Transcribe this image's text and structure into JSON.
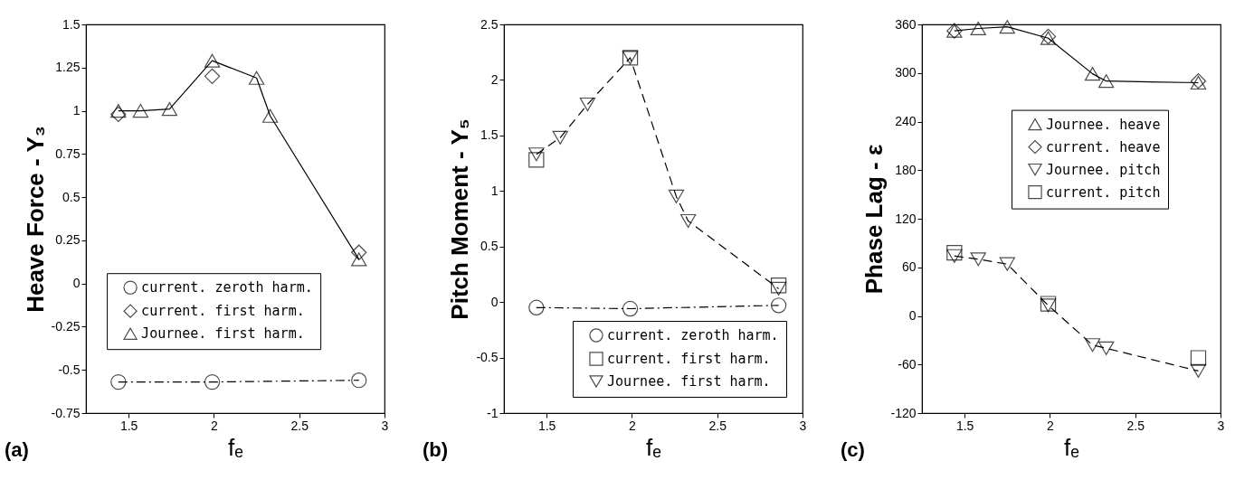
{
  "chart_data": [
    {
      "type": "line",
      "title": "(a)",
      "xlabel": "fₑ",
      "ylabel": "Heave Force - Y₃",
      "xlim": [
        1.25,
        3
      ],
      "xticks": [
        1.5,
        2,
        2.5,
        3
      ],
      "ylim": [
        -0.75,
        1.5
      ],
      "yticks": [
        -0.75,
        -0.5,
        -0.25,
        0,
        0.25,
        0.5,
        0.75,
        1,
        1.25,
        1.5
      ],
      "grid": false,
      "legend": "bottom",
      "series": [
        {
          "name": "current. zeroth harm.",
          "type": "line",
          "color": "#000000",
          "marker": "circle",
          "line_style": "dashdot",
          "x": [
            1.44,
            1.99,
            2.85
          ],
          "values": [
            -0.57,
            -0.57,
            -0.56
          ]
        },
        {
          "name": "current. first harm.",
          "type": "scatter",
          "color": "#000000",
          "marker": "diamond",
          "x": [
            1.44,
            1.99,
            2.85
          ],
          "values": [
            0.98,
            1.2,
            0.18
          ]
        },
        {
          "name": "Journee. first harm.",
          "type": "line",
          "color": "#000000",
          "marker": "triangle",
          "line_style": "solid",
          "x": [
            1.44,
            1.57,
            1.74,
            1.99,
            2.25,
            2.33,
            2.85
          ],
          "values": [
            1.0,
            1.0,
            1.01,
            1.29,
            1.19,
            0.97,
            0.14
          ]
        }
      ]
    },
    {
      "type": "line",
      "title": "(b)",
      "xlabel": "fₑ",
      "ylabel": "Pitch Moment - Y₅",
      "xlim": [
        1.25,
        3
      ],
      "xticks": [
        1.5,
        2,
        2.5,
        3
      ],
      "ylim": [
        -1,
        2.5
      ],
      "yticks": [
        -1,
        -0.5,
        0,
        0.5,
        1,
        1.5,
        2,
        2.5
      ],
      "grid": false,
      "legend": "bottom right",
      "series": [
        {
          "name": "current. zeroth harm.",
          "type": "line",
          "color": "#000000",
          "marker": "circle",
          "line_style": "dashdot",
          "x": [
            1.44,
            1.99,
            2.86
          ],
          "values": [
            -0.05,
            -0.06,
            -0.03
          ]
        },
        {
          "name": "current. first harm.",
          "type": "scatter",
          "color": "#000000",
          "marker": "square",
          "x": [
            1.44,
            1.99,
            2.86
          ],
          "values": [
            1.28,
            2.2,
            0.15
          ]
        },
        {
          "name": "Journee. first harm.",
          "type": "line",
          "color": "#000000",
          "marker": "triangle-down",
          "line_style": "dashed",
          "x": [
            1.44,
            1.58,
            1.74,
            1.99,
            2.26,
            2.33,
            2.86
          ],
          "values": [
            1.33,
            1.48,
            1.78,
            2.2,
            0.95,
            0.73,
            0.12
          ]
        }
      ]
    },
    {
      "type": "line",
      "title": "(c)",
      "xlabel": "fₑ",
      "ylabel": "Phase Lag - ε",
      "xlim": [
        1.25,
        3
      ],
      "xticks": [
        1.5,
        2,
        2.5,
        3
      ],
      "ylim": [
        -120,
        360
      ],
      "yticks": [
        -120,
        -60,
        0,
        60,
        120,
        180,
        240,
        300,
        360
      ],
      "grid": false,
      "legend": "right",
      "series": [
        {
          "name": "Journee. heave",
          "type": "line",
          "color": "#000000",
          "marker": "triangle",
          "line_style": "solid",
          "x": [
            1.44,
            1.58,
            1.75,
            1.99,
            2.25,
            2.33,
            2.87
          ],
          "values": [
            352,
            355,
            357,
            343,
            299,
            290,
            288
          ]
        },
        {
          "name": "current. heave",
          "type": "scatter",
          "color": "#000000",
          "marker": "diamond",
          "x": [
            1.44,
            1.99,
            2.87
          ],
          "values": [
            352,
            345,
            290
          ]
        },
        {
          "name": "Journee. pitch",
          "type": "line",
          "color": "#000000",
          "marker": "triangle-down",
          "line_style": "dashed",
          "x": [
            1.44,
            1.58,
            1.75,
            1.99,
            2.25,
            2.33,
            2.87
          ],
          "values": [
            74,
            70,
            64,
            13,
            -36,
            -40,
            -68
          ]
        },
        {
          "name": "current. pitch",
          "type": "scatter",
          "color": "#000000",
          "marker": "square",
          "x": [
            1.44,
            1.99,
            2.87
          ],
          "values": [
            78,
            15,
            -52
          ]
        }
      ]
    }
  ]
}
